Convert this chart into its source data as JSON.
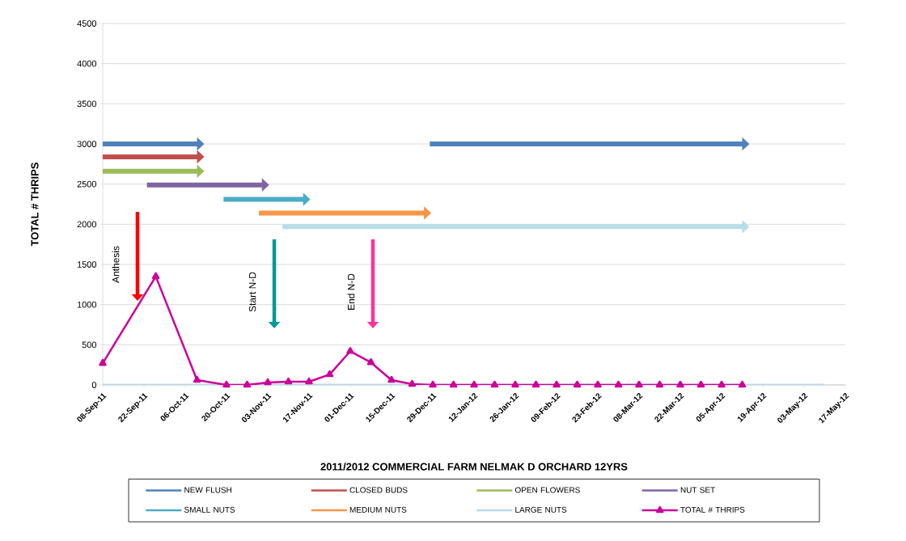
{
  "chart_data": {
    "type": "line",
    "xlabel": "2011/2012 COMMERCIAL FARM NELMAK D ORCHARD 12YRS",
    "ylabel": "TOTAL # THRIPS",
    "xlim": [
      "2011-09-08",
      "2012-05-17"
    ],
    "ylim": [
      0,
      4500
    ],
    "xticks": [
      {
        "value": "2011-09-08",
        "label": "08-Sep-11"
      },
      {
        "value": "2011-09-22",
        "label": "22-Sep-11"
      },
      {
        "value": "2011-10-06",
        "label": "06-Oct-11"
      },
      {
        "value": "2011-10-20",
        "label": "20-Oct-11"
      },
      {
        "value": "2011-11-03",
        "label": "03-Nov-11"
      },
      {
        "value": "2011-11-17",
        "label": "17-Nov-11"
      },
      {
        "value": "2011-12-01",
        "label": "01-Dec-11"
      },
      {
        "value": "2011-12-15",
        "label": "15-Dec-11"
      },
      {
        "value": "2011-12-29",
        "label": "29-Dec-11"
      },
      {
        "value": "2012-01-12",
        "label": "12-Jan-12"
      },
      {
        "value": "2012-01-26",
        "label": "26-Jan-12"
      },
      {
        "value": "2012-02-09",
        "label": "09-Feb-12"
      },
      {
        "value": "2012-02-23",
        "label": "23-Feb-12"
      },
      {
        "value": "2012-03-08",
        "label": "08-Mar-12"
      },
      {
        "value": "2012-03-22",
        "label": "22-Mar-12"
      },
      {
        "value": "2012-04-05",
        "label": "05-Apr-12"
      },
      {
        "value": "2012-04-19",
        "label": "19-Apr-12"
      },
      {
        "value": "2012-05-03",
        "label": "03-May-12"
      },
      {
        "value": "2012-05-17",
        "label": "17-May-12"
      }
    ],
    "yticks": [
      0,
      500,
      1000,
      1500,
      2000,
      2500,
      3000,
      3500,
      4000,
      4500
    ],
    "grid": "y",
    "legend": "bottom",
    "line_style": "solid",
    "series": [
      {
        "name": "NEW FLUSH",
        "color": "#4f81bd",
        "x": [
          "2011-09-08",
          "2011-10-10"
        ],
        "values": [
          3000,
          3000
        ]
      },
      {
        "color": "#4f81bd",
        "x": [
          "2011-12-28",
          "2012-04-12"
        ],
        "values": [
          3000,
          3000
        ]
      },
      {
        "name": "CLOSED BUDS",
        "color": "#c0504d",
        "x": [
          "2011-09-08",
          "2011-10-10"
        ],
        "values": [
          2840,
          2840
        ]
      },
      {
        "name": "OPEN FLOWERS",
        "color": "#9bbb59",
        "x": [
          "2011-09-08",
          "2011-10-10"
        ],
        "values": [
          2660,
          2660
        ]
      },
      {
        "name": "NUT SET",
        "color": "#8064a2",
        "x": [
          "2011-09-23",
          "2011-11-01"
        ],
        "values": [
          2490,
          2490
        ]
      },
      {
        "name": "SMALL NUTS",
        "color": "#4bacc6",
        "x": [
          "2011-10-19",
          "2011-11-15"
        ],
        "values": [
          2310,
          2310
        ]
      },
      {
        "name": "MEDIUM NUTS",
        "color": "#f79646",
        "x": [
          "2011-10-31",
          "2011-12-26"
        ],
        "values": [
          2140,
          2140
        ]
      },
      {
        "name": "LARGE NUTS",
        "color": "#b7dde8",
        "x": [
          "2011-11-08",
          "2012-04-12"
        ],
        "values": [
          1970,
          1970
        ]
      },
      {
        "color": "#b7dde8",
        "x": [
          "2011-09-08",
          "2012-05-10"
        ],
        "values": [
          0,
          0
        ]
      },
      {
        "name": "TOTAL # THRIPS",
        "color": "#cc0099",
        "marker": "triangle",
        "x": [
          "2011-09-08",
          "2011-09-26",
          "2011-10-10",
          "2011-10-20",
          "2011-10-27",
          "2011-11-03",
          "2011-11-10",
          "2011-11-17",
          "2011-11-24",
          "2011-12-01",
          "2011-12-08",
          "2011-12-15",
          "2011-12-22",
          "2011-12-29",
          "2012-01-05",
          "2012-01-12",
          "2012-01-19",
          "2012-01-26",
          "2012-02-02",
          "2012-02-09",
          "2012-02-16",
          "2012-02-23",
          "2012-03-01",
          "2012-03-08",
          "2012-03-15",
          "2012-03-22",
          "2012-03-29",
          "2012-04-05",
          "2012-04-12"
        ],
        "values": [
          270,
          1350,
          60,
          0,
          0,
          30,
          40,
          40,
          130,
          420,
          280,
          60,
          10,
          0,
          0,
          0,
          0,
          0,
          0,
          0,
          0,
          0,
          0,
          0,
          0,
          0,
          0,
          0,
          0
        ]
      }
    ],
    "annotations": [
      "Anthesis",
      "Start N-D",
      "End N-D"
    ]
  }
}
